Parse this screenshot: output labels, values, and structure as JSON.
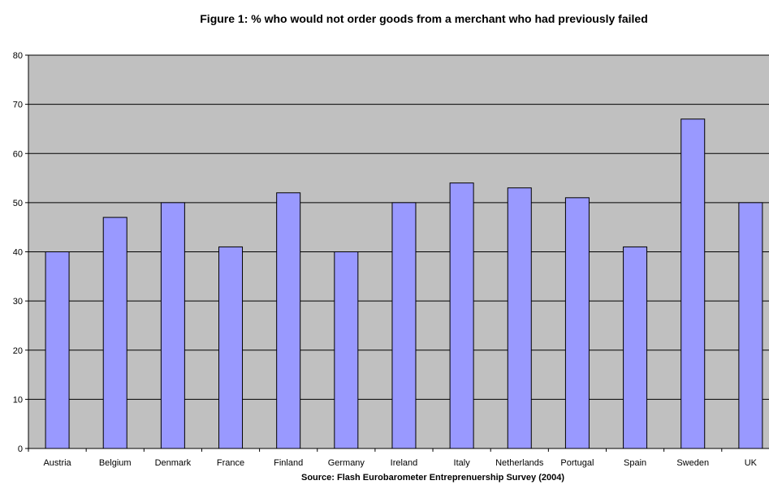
{
  "chart_data": {
    "type": "bar",
    "title": "Figure 1: % who would not order goods from a merchant who had previously failed",
    "source": "Source: Flash Eurobarometer Entreprenuership Survey (2004)",
    "xlabel": "",
    "ylabel": "",
    "categories": [
      "Austria",
      "Belgium",
      "Denmark",
      "France",
      "Finland",
      "Germany",
      "Ireland",
      "Italy",
      "Netherlands",
      "Portugal",
      "Spain",
      "Sweden",
      "UK"
    ],
    "values": [
      40,
      47,
      50,
      41,
      52,
      40,
      50,
      54,
      53,
      51,
      41,
      67,
      50
    ],
    "ylim": [
      0,
      80
    ],
    "yticks": [
      0,
      10,
      20,
      30,
      40,
      50,
      60,
      70,
      80
    ],
    "grid": true,
    "legend": "none",
    "colors": {
      "bar_fill": "#9999ff",
      "bar_stroke": "#000000",
      "plot_background": "#c0c0c0",
      "gridline": "#000000"
    }
  }
}
